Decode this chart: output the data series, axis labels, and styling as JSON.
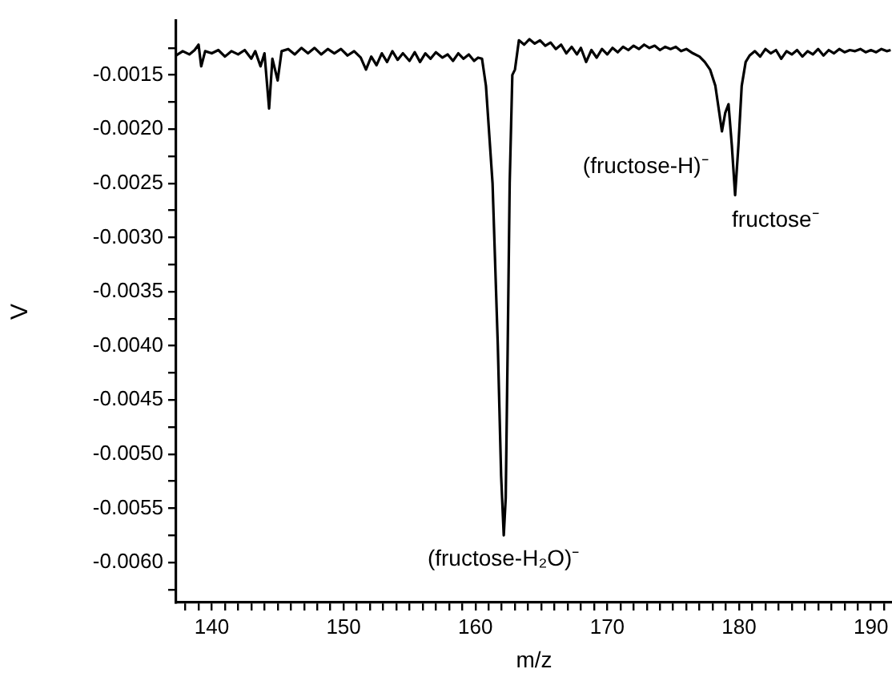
{
  "chart_data": {
    "type": "line",
    "xlabel": "m/z",
    "ylabel": "V",
    "color": "#000000",
    "legend": false,
    "grid": false,
    "xlim": [
      137.3,
      191.6
    ],
    "ylim": [
      -0.00637,
      -0.001
    ],
    "xticks": [
      {
        "value": 138,
        "label": null
      },
      {
        "value": 139,
        "label": null
      },
      {
        "value": 140,
        "label": "140"
      },
      {
        "value": 141,
        "label": null
      },
      {
        "value": 142,
        "label": null
      },
      {
        "value": 143,
        "label": null
      },
      {
        "value": 144,
        "label": null
      },
      {
        "value": 145,
        "label": null
      },
      {
        "value": 146,
        "label": null
      },
      {
        "value": 147,
        "label": null
      },
      {
        "value": 148,
        "label": null
      },
      {
        "value": 149,
        "label": null
      },
      {
        "value": 150,
        "label": "150"
      },
      {
        "value": 151,
        "label": null
      },
      {
        "value": 152,
        "label": null
      },
      {
        "value": 153,
        "label": null
      },
      {
        "value": 154,
        "label": null
      },
      {
        "value": 155,
        "label": null
      },
      {
        "value": 156,
        "label": null
      },
      {
        "value": 157,
        "label": null
      },
      {
        "value": 158,
        "label": null
      },
      {
        "value": 159,
        "label": null
      },
      {
        "value": 160,
        "label": "160"
      },
      {
        "value": 161,
        "label": null
      },
      {
        "value": 162,
        "label": null
      },
      {
        "value": 163,
        "label": null
      },
      {
        "value": 164,
        "label": null
      },
      {
        "value": 165,
        "label": null
      },
      {
        "value": 166,
        "label": null
      },
      {
        "value": 167,
        "label": null
      },
      {
        "value": 168,
        "label": null
      },
      {
        "value": 169,
        "label": null
      },
      {
        "value": 170,
        "label": "170"
      },
      {
        "value": 171,
        "label": null
      },
      {
        "value": 172,
        "label": null
      },
      {
        "value": 173,
        "label": null
      },
      {
        "value": 174,
        "label": null
      },
      {
        "value": 175,
        "label": null
      },
      {
        "value": 176,
        "label": null
      },
      {
        "value": 177,
        "label": null
      },
      {
        "value": 178,
        "label": null
      },
      {
        "value": 179,
        "label": null
      },
      {
        "value": 180,
        "label": "180"
      },
      {
        "value": 181,
        "label": null
      },
      {
        "value": 182,
        "label": null
      },
      {
        "value": 183,
        "label": null
      },
      {
        "value": 184,
        "label": null
      },
      {
        "value": 185,
        "label": null
      },
      {
        "value": 186,
        "label": null
      },
      {
        "value": 187,
        "label": null
      },
      {
        "value": 188,
        "label": null
      },
      {
        "value": 189,
        "label": null
      },
      {
        "value": 190,
        "label": "190"
      },
      {
        "value": 191,
        "label": null
      }
    ],
    "yticks": [
      {
        "value": -0.00125,
        "label": null
      },
      {
        "value": -0.0015,
        "label": "-0.0015"
      },
      {
        "value": -0.00175,
        "label": null
      },
      {
        "value": -0.002,
        "label": "-0.0020"
      },
      {
        "value": -0.00225,
        "label": null
      },
      {
        "value": -0.0025,
        "label": "-0.0025"
      },
      {
        "value": -0.00275,
        "label": null
      },
      {
        "value": -0.003,
        "label": "-0.0030"
      },
      {
        "value": -0.00325,
        "label": null
      },
      {
        "value": -0.0035,
        "label": "-0.0035"
      },
      {
        "value": -0.00375,
        "label": null
      },
      {
        "value": -0.004,
        "label": "-0.0040"
      },
      {
        "value": -0.00425,
        "label": null
      },
      {
        "value": -0.0045,
        "label": "-0.0045"
      },
      {
        "value": -0.00475,
        "label": null
      },
      {
        "value": -0.005,
        "label": "-0.0050"
      },
      {
        "value": -0.00525,
        "label": null
      },
      {
        "value": -0.0055,
        "label": "-0.0055"
      },
      {
        "value": -0.00575,
        "label": null
      },
      {
        "value": -0.006,
        "label": "-0.0060"
      },
      {
        "value": -0.00625,
        "label": null
      }
    ],
    "x": [
      137.3,
      137.8,
      138.3,
      138.7,
      139.0,
      139.2,
      139.5,
      140.0,
      140.5,
      141.0,
      141.5,
      142.0,
      142.5,
      143.0,
      143.3,
      143.7,
      144.0,
      144.35,
      144.6,
      145.0,
      145.3,
      145.8,
      146.3,
      146.8,
      147.3,
      147.8,
      148.3,
      148.8,
      149.3,
      149.8,
      150.3,
      150.8,
      151.3,
      151.7,
      152.1,
      152.5,
      152.9,
      153.3,
      153.7,
      154.1,
      154.5,
      155.0,
      155.4,
      155.8,
      156.2,
      156.6,
      157.0,
      157.5,
      157.9,
      158.3,
      158.7,
      159.1,
      159.5,
      159.9,
      160.2,
      160.5,
      160.8,
      161.3,
      161.7,
      161.95,
      162.15,
      162.3,
      162.45,
      162.6,
      162.8,
      163.0,
      163.3,
      163.7,
      164.1,
      164.5,
      164.9,
      165.3,
      165.7,
      166.1,
      166.5,
      166.9,
      167.3,
      167.7,
      168.0,
      168.4,
      168.8,
      169.2,
      169.6,
      170.0,
      170.4,
      170.8,
      171.2,
      171.6,
      172.0,
      172.4,
      172.8,
      173.2,
      173.6,
      174.0,
      174.4,
      174.8,
      175.2,
      175.6,
      176.0,
      176.5,
      177.0,
      177.4,
      177.8,
      178.2,
      178.5,
      178.7,
      178.95,
      179.2,
      179.45,
      179.7,
      179.95,
      180.2,
      180.5,
      180.8,
      181.2,
      181.6,
      182.0,
      182.4,
      182.8,
      183.2,
      183.6,
      184.0,
      184.4,
      184.8,
      185.2,
      185.6,
      186.0,
      186.4,
      186.8,
      187.2,
      187.6,
      188.0,
      188.4,
      188.8,
      189.2,
      189.6,
      190.0,
      190.4,
      190.8,
      191.2,
      191.5
    ],
    "values": [
      -0.00132,
      -0.00128,
      -0.00131,
      -0.00127,
      -0.00122,
      -0.00142,
      -0.00128,
      -0.0013,
      -0.00127,
      -0.00133,
      -0.00128,
      -0.00131,
      -0.00127,
      -0.00135,
      -0.00128,
      -0.00142,
      -0.0013,
      -0.00181,
      -0.00135,
      -0.00155,
      -0.00128,
      -0.00126,
      -0.00131,
      -0.00125,
      -0.0013,
      -0.00125,
      -0.00131,
      -0.00126,
      -0.0013,
      -0.00126,
      -0.00132,
      -0.00128,
      -0.00134,
      -0.00145,
      -0.00133,
      -0.00141,
      -0.0013,
      -0.00138,
      -0.00128,
      -0.00136,
      -0.0013,
      -0.00137,
      -0.00129,
      -0.00138,
      -0.0013,
      -0.00135,
      -0.00129,
      -0.00134,
      -0.00131,
      -0.00137,
      -0.0013,
      -0.00135,
      -0.00131,
      -0.00137,
      -0.00134,
      -0.00135,
      -0.0016,
      -0.0025,
      -0.004,
      -0.0052,
      -0.00575,
      -0.0054,
      -0.004,
      -0.0025,
      -0.0015,
      -0.00145,
      -0.00118,
      -0.00122,
      -0.00117,
      -0.00121,
      -0.00118,
      -0.00123,
      -0.0012,
      -0.00126,
      -0.00122,
      -0.0013,
      -0.00124,
      -0.00131,
      -0.00125,
      -0.00138,
      -0.00127,
      -0.00134,
      -0.00126,
      -0.00131,
      -0.00125,
      -0.00129,
      -0.00124,
      -0.00127,
      -0.00123,
      -0.00126,
      -0.00122,
      -0.00125,
      -0.00123,
      -0.00127,
      -0.00124,
      -0.00126,
      -0.00124,
      -0.00128,
      -0.00126,
      -0.0013,
      -0.00133,
      -0.00138,
      -0.00145,
      -0.0016,
      -0.00185,
      -0.00202,
      -0.00185,
      -0.00177,
      -0.00215,
      -0.00261,
      -0.00215,
      -0.0016,
      -0.00138,
      -0.00132,
      -0.00128,
      -0.00133,
      -0.00126,
      -0.0013,
      -0.00127,
      -0.00135,
      -0.00128,
      -0.00131,
      -0.00127,
      -0.00133,
      -0.00128,
      -0.00131,
      -0.00126,
      -0.00132,
      -0.00127,
      -0.0013,
      -0.00126,
      -0.00129,
      -0.00127,
      -0.00128,
      -0.00126,
      -0.00129,
      -0.00127,
      -0.00129,
      -0.00126,
      -0.00128,
      -0.00127
    ],
    "annotations": [
      {
        "text": "(fructose-H₂O)⁻",
        "x": 162.15,
        "y": -0.00575
      },
      {
        "text": "(fructose-H)⁻",
        "x": 178.7,
        "y": -0.00202
      },
      {
        "text": "fructose⁻",
        "x": 179.7,
        "y": -0.00261
      }
    ]
  }
}
